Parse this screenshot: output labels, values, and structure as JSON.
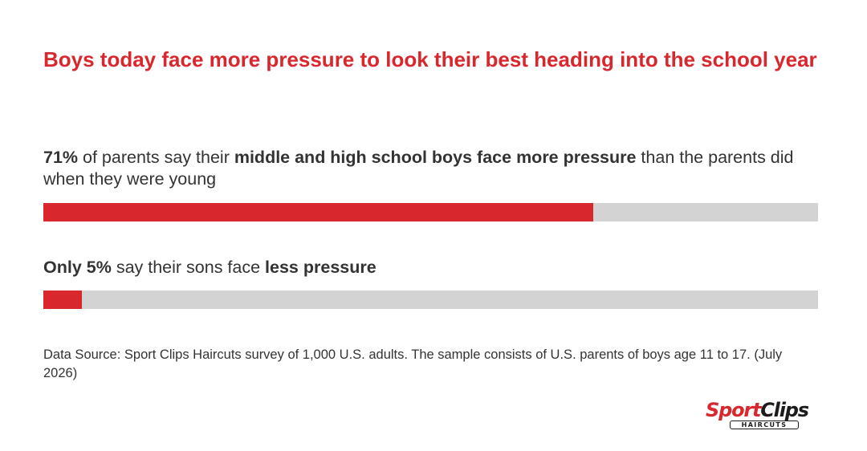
{
  "title": "Boys today face more pressure to look their best heading into the school year",
  "stats": [
    {
      "pct": "71%",
      "text_a": " of parents say their ",
      "emph": "middle and high school boys face more pressure",
      "text_b": " than the parents did when they were young"
    },
    {
      "pct": "Only 5%",
      "text_a": " say their sons face ",
      "emph": "less pressure",
      "text_b": ""
    }
  ],
  "source": "Data Source: Sport Clips Haircuts survey of 1,000 U.S. adults. The sample consists of U.S. parents of boys age 11 to 17. (July 2026)",
  "logo": {
    "word1": "Sport",
    "word2": "Clips",
    "sub": "HAIRCUTS"
  },
  "colors": {
    "accent": "#d9272e",
    "track": "#d3d3d3",
    "text": "#333333"
  },
  "chart_data": {
    "type": "bar",
    "orientation": "horizontal",
    "categories": [
      "middle and high school boys face more pressure",
      "less pressure"
    ],
    "values": [
      71,
      5
    ],
    "unit": "%",
    "xlim": [
      0,
      100
    ]
  }
}
